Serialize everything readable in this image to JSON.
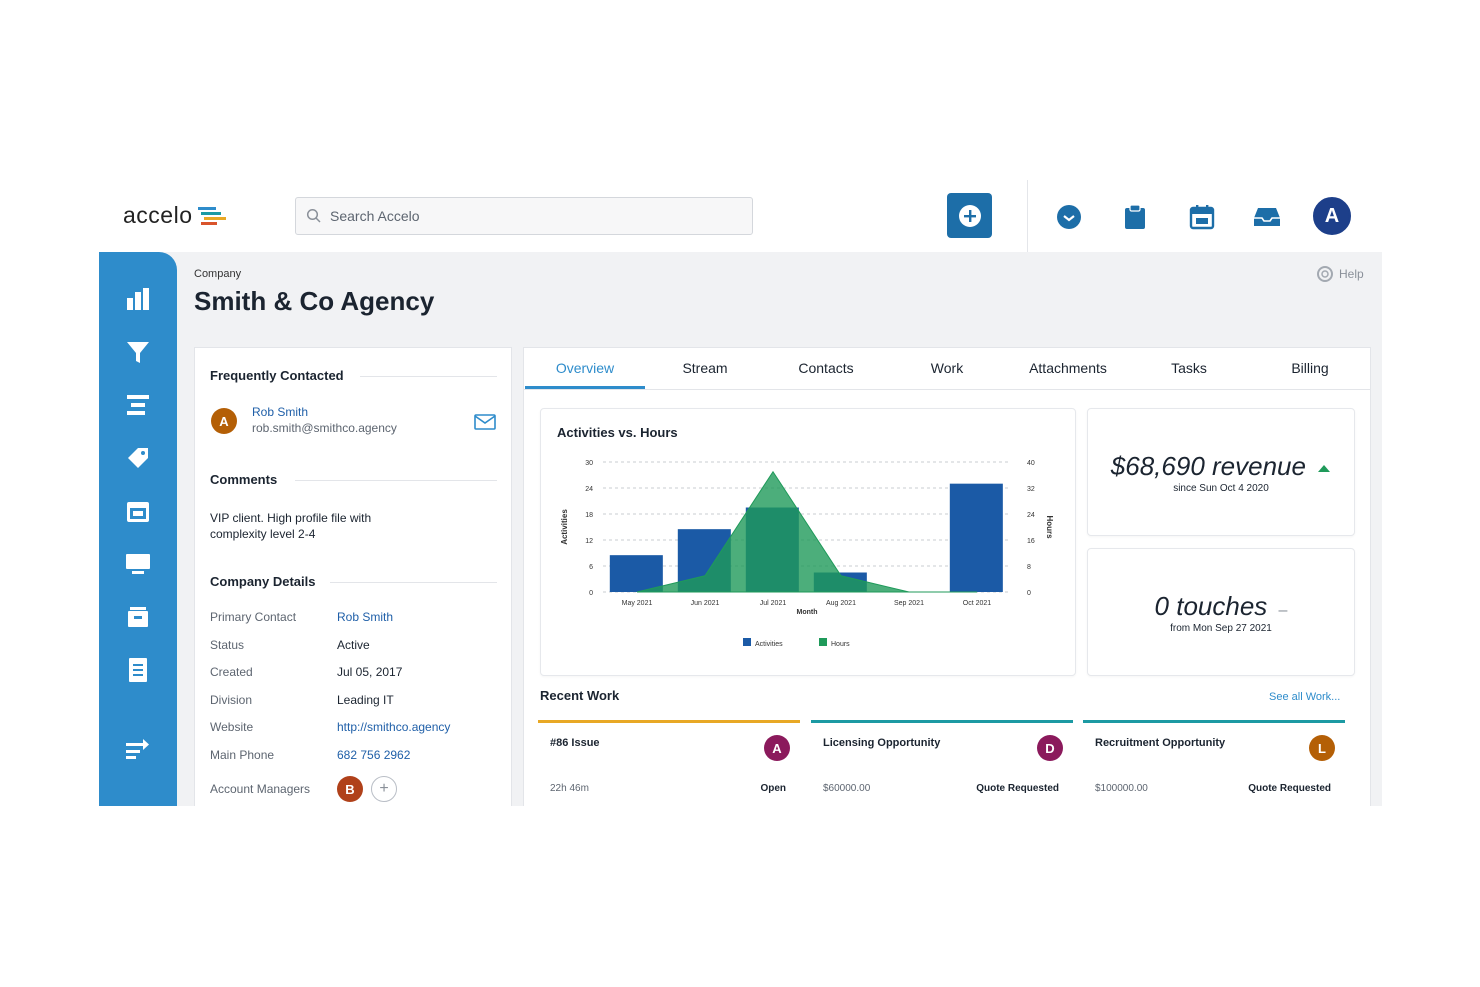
{
  "app": {
    "logo_text": "accelo",
    "search_placeholder": "Search Accelo",
    "user_avatar": "A"
  },
  "sidebar": {
    "items": [
      {
        "icon": "dashboard-bar-icon"
      },
      {
        "icon": "funnel-icon"
      },
      {
        "icon": "timeline-icon"
      },
      {
        "icon": "tag-icon"
      },
      {
        "icon": "calendar-icon"
      },
      {
        "icon": "monitor-icon"
      },
      {
        "icon": "archive-icon"
      },
      {
        "icon": "document-icon"
      },
      {
        "icon": "switch-arrows-icon"
      }
    ]
  },
  "header": {
    "breadcrumb": "Company",
    "title": "Smith & Co Agency",
    "help": "Help"
  },
  "left_panel": {
    "frequent_heading": "Frequently Contacted",
    "contact": {
      "avatar": "A",
      "name": "Rob Smith",
      "email": "rob.smith@smithco.agency"
    },
    "comments_heading": "Comments",
    "comment": "VIP client. High profile file with complexity level 2-4",
    "details_heading": "Company Details",
    "details": [
      {
        "label": "Primary Contact",
        "value": "Rob Smith",
        "link": true
      },
      {
        "label": "Status",
        "value": "Active",
        "link": false
      },
      {
        "label": "Created",
        "value": "Jul 05, 2017",
        "link": false
      },
      {
        "label": "Division",
        "value": "Leading IT",
        "link": false
      },
      {
        "label": "Website",
        "value": "http://smithco.agency",
        "link": true
      },
      {
        "label": "Main Phone",
        "value": "682 756 2962",
        "link": true
      }
    ],
    "managers_label": "Account Managers",
    "manager_avatar": "B"
  },
  "tabs": [
    "Overview",
    "Stream",
    "Contacts",
    "Work",
    "Attachments",
    "Tasks",
    "Billing"
  ],
  "active_tab": "Overview",
  "chart_data": {
    "type": "bar",
    "title": "Activities vs. Hours",
    "xlabel": "Month",
    "ylabel": "Activities",
    "y2label": "Hours",
    "categories": [
      "May 2021",
      "Jun 2021",
      "Jul 2021",
      "Aug 2021",
      "Sep 2021",
      "Oct 2021"
    ],
    "ylim": [
      0,
      30
    ],
    "y2lim": [
      0,
      40
    ],
    "yticks": [
      0,
      6,
      12,
      18,
      24,
      30
    ],
    "y2ticks": [
      0,
      8,
      16,
      24,
      32,
      40
    ],
    "series": [
      {
        "name": "Activities",
        "type": "bar",
        "axis": "left",
        "color": "#1b5aa6",
        "values": [
          8.5,
          14.5,
          19.5,
          4.5,
          0,
          25
        ]
      },
      {
        "name": "Hours",
        "type": "area",
        "axis": "right",
        "color": "#1f9a5a",
        "values": [
          0,
          5,
          37,
          5,
          0,
          0
        ]
      }
    ],
    "legend": "bottom",
    "grid": true
  },
  "kpis": [
    {
      "value": "$68,690 revenue",
      "sub": "since Sun Oct 4 2020",
      "trend": "up"
    },
    {
      "value": "0 touches",
      "sub": "from Mon Sep 27 2021",
      "trend": "flat"
    }
  ],
  "recent_work": {
    "heading": "Recent Work",
    "see_all": "See all Work...",
    "items": [
      {
        "title": "#86 Issue",
        "avatar": "A",
        "avatar_color": "#8b1a5c",
        "left": "22h 46m",
        "right": "Open",
        "accent": "#e8a825"
      },
      {
        "title": "Licensing Opportunity",
        "avatar": "D",
        "avatar_color": "#8b1a5c",
        "left": "$60000.00",
        "right": "Quote Requested",
        "accent": "#1c9aa3"
      },
      {
        "title": "Recruitment Opportunity",
        "avatar": "L",
        "avatar_color": "#b45f06",
        "left": "$100000.00",
        "right": "Quote Requested",
        "accent": "#1c9aa3"
      }
    ]
  },
  "colors": {
    "brand_blue": "#2e8ccb",
    "button_blue": "#1d6ea8",
    "bar_blue": "#1b5aa6",
    "area_green": "#1f9a5a"
  }
}
